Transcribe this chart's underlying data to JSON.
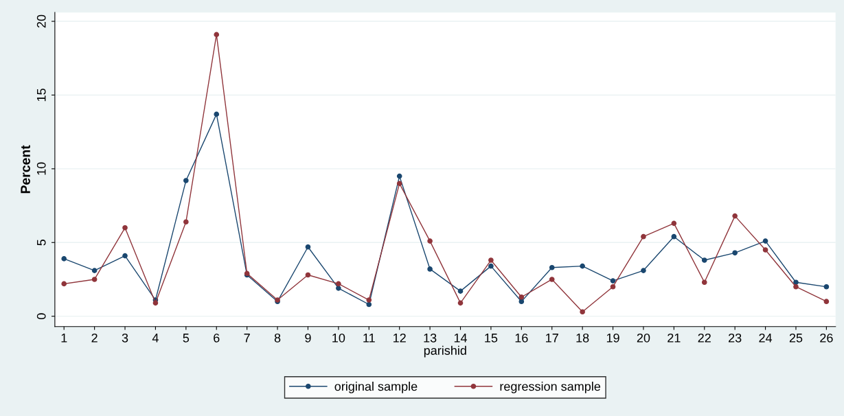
{
  "chart_data": {
    "type": "line",
    "xlabel": "parishid",
    "ylabel": "Percent",
    "categories": [
      "1",
      "2",
      "3",
      "4",
      "5",
      "6",
      "7",
      "8",
      "9",
      "10",
      "11",
      "12",
      "13",
      "14",
      "15",
      "16",
      "17",
      "18",
      "19",
      "20",
      "21",
      "22",
      "23",
      "24",
      "25",
      "26"
    ],
    "series": [
      {
        "name": "original sample",
        "color": "#1a476f",
        "values": [
          3.9,
          3.1,
          4.1,
          1.1,
          9.2,
          13.7,
          2.8,
          1.0,
          4.7,
          1.9,
          0.8,
          9.5,
          3.2,
          1.7,
          3.4,
          1.0,
          3.3,
          3.4,
          2.4,
          3.1,
          5.4,
          3.8,
          4.3,
          5.1,
          2.3,
          2.0
        ]
      },
      {
        "name": "regression sample",
        "color": "#90353b",
        "values": [
          2.2,
          2.5,
          6.0,
          0.9,
          6.4,
          19.1,
          2.9,
          1.1,
          2.8,
          2.2,
          1.1,
          9.0,
          5.1,
          0.9,
          3.8,
          1.3,
          2.5,
          0.3,
          2.0,
          5.4,
          6.3,
          2.3,
          6.8,
          4.5,
          2.0,
          1.0
        ]
      }
    ],
    "ylim": [
      -0.7,
      20.6
    ],
    "yticks": [
      0,
      5,
      10,
      15,
      20
    ],
    "grid": "y",
    "legend": "bottom",
    "marker": "circle",
    "line_style": "solid"
  }
}
